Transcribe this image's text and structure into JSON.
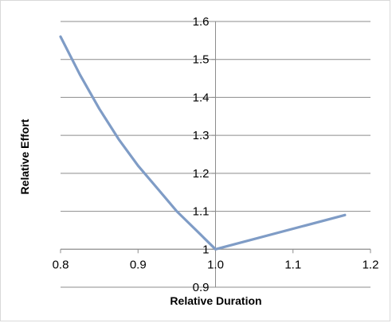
{
  "chart_data": {
    "type": "line",
    "title": "",
    "xlabel": "Relative Duration",
    "ylabel": "Relative Effort",
    "xlim": [
      0.8,
      1.2
    ],
    "ylim": [
      0.9,
      1.6
    ],
    "x_ticks": [
      "0.8",
      "0.9",
      "1.0",
      "1.1",
      "1.2"
    ],
    "y_ticks": [
      "0.9",
      "1",
      "1.1",
      "1.2",
      "1.3",
      "1.4",
      "1.5",
      "1.6"
    ],
    "grid": "horizontal",
    "axes_cross_at": {
      "x": 1.0,
      "y": 1.0
    },
    "series": [
      {
        "color": "#7f9cc6",
        "x": [
          0.8,
          0.825,
          0.85,
          0.875,
          0.9,
          0.925,
          0.95,
          0.975,
          1.0,
          1.167
        ],
        "y": [
          1.56,
          1.46,
          1.37,
          1.29,
          1.22,
          1.16,
          1.1,
          1.05,
          1.0,
          1.09
        ]
      }
    ]
  }
}
